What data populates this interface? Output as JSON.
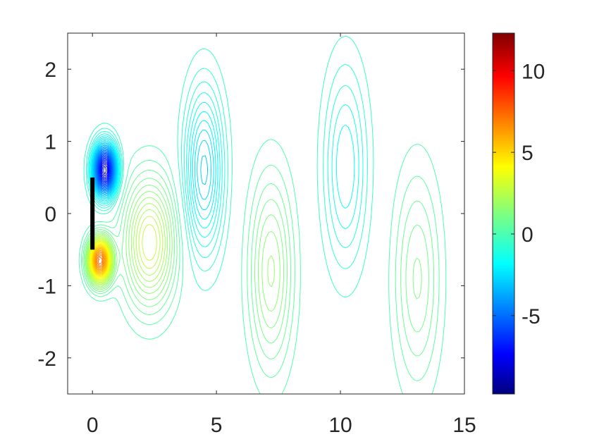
{
  "chart_data": {
    "type": "contour",
    "title": "",
    "xlabel": "",
    "ylabel": "",
    "xlim": [
      -1,
      15
    ],
    "ylim": [
      -2.5,
      2.5
    ],
    "x_ticks": [
      {
        "value": 0,
        "label": "0"
      },
      {
        "value": 5,
        "label": "5"
      },
      {
        "value": 10,
        "label": "10"
      },
      {
        "value": 15,
        "label": "15"
      }
    ],
    "y_ticks": [
      {
        "value": 2,
        "label": "2"
      },
      {
        "value": 1,
        "label": "1"
      },
      {
        "value": 0,
        "label": "0"
      },
      {
        "value": -1,
        "label": "-1"
      },
      {
        "value": -2,
        "label": "-2"
      }
    ],
    "colorbar": {
      "range": [
        -9.8,
        12.3
      ],
      "colormap": "jet",
      "ticks": [
        {
          "value": 10,
          "label": "10"
        },
        {
          "value": 5,
          "label": "5"
        },
        {
          "value": 0,
          "label": "0"
        },
        {
          "value": -5,
          "label": "-5"
        }
      ]
    },
    "plate": {
      "x": 0,
      "y_range": [
        -0.5,
        0.5
      ],
      "color": "#000000"
    },
    "vortices": [
      {
        "x": 0.5,
        "y": 0.6,
        "strength": -8.0,
        "rx": 0.45,
        "ry": 0.35
      },
      {
        "x": 0.3,
        "y": -0.65,
        "strength": 7.5,
        "rx": 0.45,
        "ry": 0.3
      },
      {
        "x": 2.3,
        "y": -0.4,
        "strength": 3.0,
        "rx": 1.0,
        "ry": 0.85
      },
      {
        "x": 4.5,
        "y": 0.6,
        "strength": -2.6,
        "rx": 0.75,
        "ry": 1.1
      },
      {
        "x": 7.2,
        "y": -0.8,
        "strength": 1.8,
        "rx": 0.85,
        "ry": 1.3
      },
      {
        "x": 10.2,
        "y": 0.65,
        "strength": -1.5,
        "rx": 0.85,
        "ry": 1.35
      },
      {
        "x": 13.1,
        "y": -0.9,
        "strength": 1.3,
        "rx": 0.9,
        "ry": 1.45
      }
    ]
  }
}
